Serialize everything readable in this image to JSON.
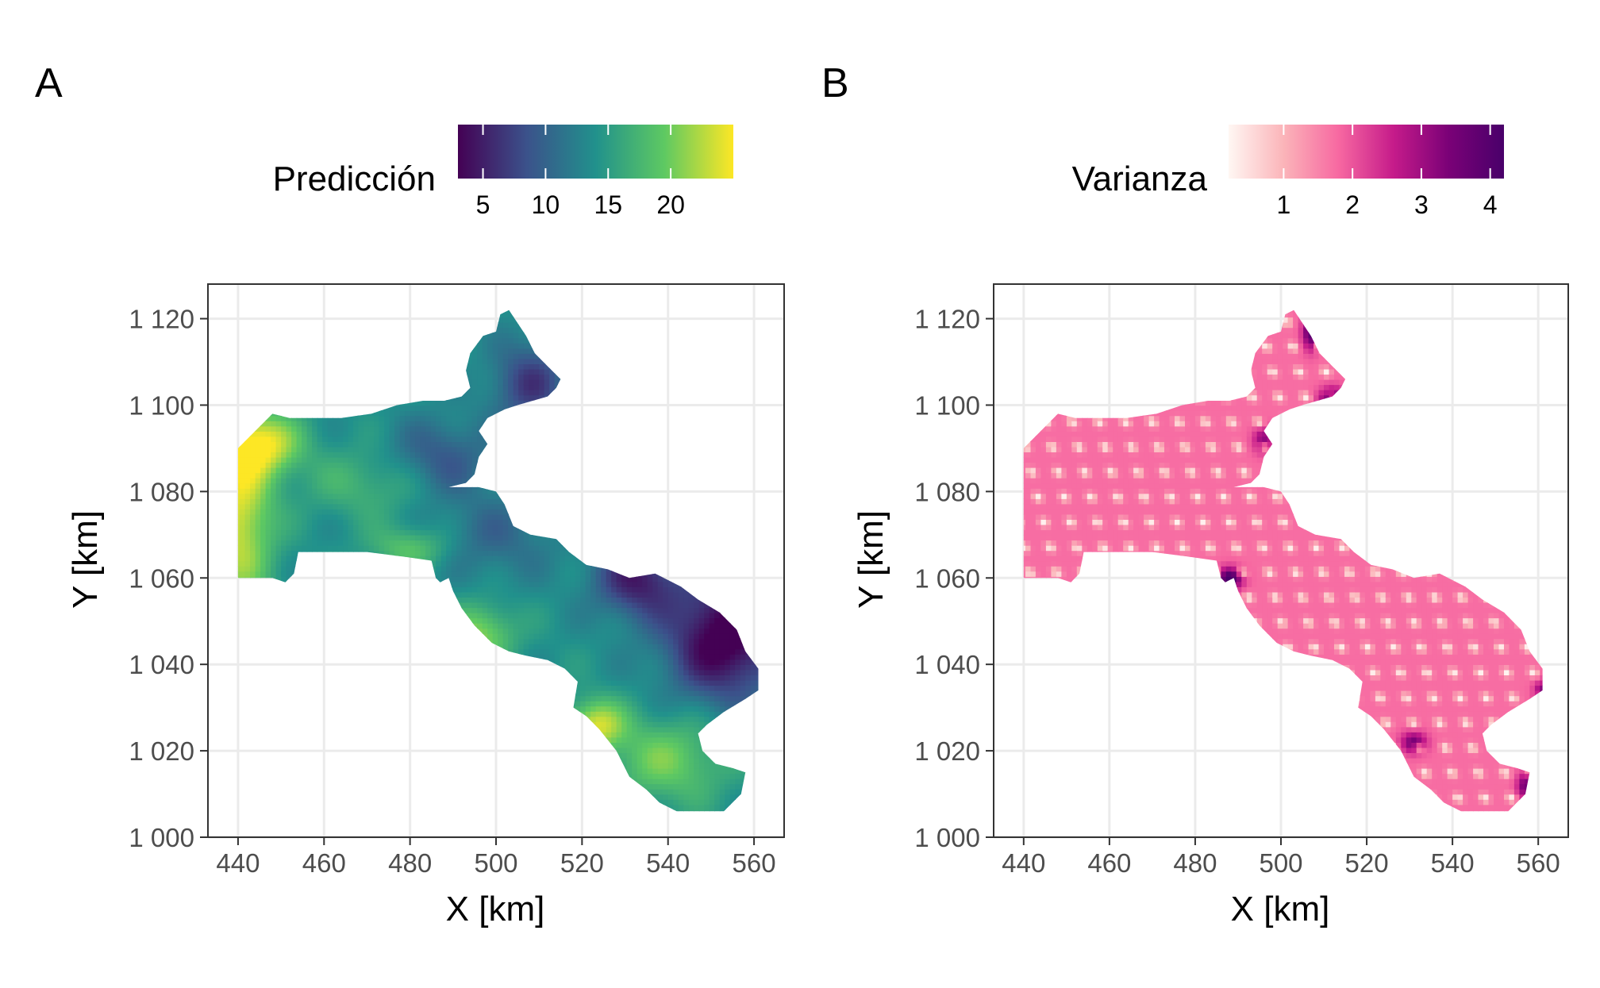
{
  "chart_data": [
    {
      "type": "heatmap",
      "panel_tag": "A",
      "fill_label": "Predicción",
      "colormap": "viridis",
      "colors": [
        "#440154",
        "#3b528b",
        "#21918c",
        "#5ec962",
        "#fde725"
      ],
      "fill_range": [
        3,
        25
      ],
      "legend_ticks": [
        "5",
        "10",
        "15",
        "20"
      ],
      "legend_tick_values": [
        5,
        10,
        15,
        20
      ],
      "xlabel": "X [km]",
      "ylabel": "Y [km]",
      "xlim": [
        433,
        567
      ],
      "ylim": [
        1000,
        1128
      ],
      "x_ticks": [
        "440",
        "460",
        "480",
        "500",
        "520",
        "540",
        "560"
      ],
      "x_tick_values": [
        440,
        460,
        480,
        500,
        520,
        540,
        560
      ],
      "y_ticks": [
        "1 000",
        "1 020",
        "1 040",
        "1 060",
        "1 080",
        "1 100",
        "1 120"
      ],
      "y_tick_values": [
        1000,
        1020,
        1040,
        1060,
        1080,
        1100,
        1120
      ],
      "grid": true
    },
    {
      "type": "heatmap",
      "panel_tag": "B",
      "fill_label": "Varianza",
      "colormap": "RdPu",
      "colors": [
        "#fff7f3",
        "#fbb4b9",
        "#f768a1",
        "#c51b8a",
        "#7a0177",
        "#49006a"
      ],
      "fill_range": [
        0.2,
        4.2
      ],
      "legend_ticks": [
        "1",
        "2",
        "3",
        "4"
      ],
      "legend_tick_values": [
        1,
        2,
        3,
        4
      ],
      "xlabel": "X [km]",
      "ylabel": "Y [km]",
      "xlim": [
        433,
        567
      ],
      "ylim": [
        1000,
        1128
      ],
      "x_ticks": [
        "440",
        "460",
        "480",
        "500",
        "520",
        "540",
        "560"
      ],
      "x_tick_values": [
        440,
        460,
        480,
        500,
        520,
        540,
        560
      ],
      "y_ticks": [
        "1 000",
        "1 020",
        "1 040",
        "1 060",
        "1 080",
        "1 100",
        "1 120"
      ],
      "y_tick_values": [
        1000,
        1020,
        1040,
        1060,
        1080,
        1100,
        1120
      ],
      "grid": true
    }
  ],
  "region_outline_km": [
    [
      440,
      1060
    ],
    [
      444,
      1060
    ],
    [
      448,
      1060
    ],
    [
      451,
      1059
    ],
    [
      453,
      1061
    ],
    [
      454,
      1066
    ],
    [
      462,
      1066
    ],
    [
      470,
      1066
    ],
    [
      478,
      1065
    ],
    [
      485,
      1064
    ],
    [
      486,
      1060
    ],
    [
      487,
      1059
    ],
    [
      489,
      1060
    ],
    [
      490,
      1057
    ],
    [
      492,
      1053
    ],
    [
      495,
      1049
    ],
    [
      499,
      1045
    ],
    [
      503,
      1043
    ],
    [
      507,
      1042
    ],
    [
      512,
      1041
    ],
    [
      516,
      1039
    ],
    [
      519,
      1036
    ],
    [
      518,
      1030
    ],
    [
      521,
      1028
    ],
    [
      524,
      1025
    ],
    [
      528,
      1020
    ],
    [
      531,
      1014
    ],
    [
      535,
      1011
    ],
    [
      538,
      1008
    ],
    [
      542,
      1006
    ],
    [
      547,
      1006
    ],
    [
      553,
      1006
    ],
    [
      557,
      1010
    ],
    [
      558,
      1015
    ],
    [
      555,
      1016
    ],
    [
      551,
      1017
    ],
    [
      548,
      1020
    ],
    [
      547,
      1024
    ],
    [
      549,
      1026
    ],
    [
      553,
      1029
    ],
    [
      558,
      1032
    ],
    [
      561,
      1034
    ],
    [
      561,
      1039
    ],
    [
      558,
      1043
    ],
    [
      556,
      1048
    ],
    [
      552,
      1052
    ],
    [
      547,
      1055
    ],
    [
      543,
      1058
    ],
    [
      537,
      1061
    ],
    [
      531,
      1060
    ],
    [
      526,
      1062
    ],
    [
      521,
      1063
    ],
    [
      517,
      1066
    ],
    [
      514,
      1069
    ],
    [
      508,
      1070
    ],
    [
      504,
      1072
    ],
    [
      502,
      1077
    ],
    [
      500,
      1080
    ],
    [
      496,
      1081
    ],
    [
      489,
      1081
    ],
    [
      493,
      1082
    ],
    [
      495,
      1084
    ],
    [
      496,
      1088
    ],
    [
      498,
      1091
    ],
    [
      496,
      1094
    ],
    [
      498,
      1097
    ],
    [
      502,
      1099
    ],
    [
      505,
      1100
    ],
    [
      512,
      1102
    ],
    [
      514,
      1104
    ],
    [
      515,
      1106
    ],
    [
      512,
      1109
    ],
    [
      509,
      1112
    ],
    [
      507,
      1116
    ],
    [
      505,
      1119
    ],
    [
      503,
      1122
    ],
    [
      501,
      1121
    ],
    [
      500,
      1117
    ],
    [
      497,
      1116
    ],
    [
      494,
      1112
    ],
    [
      493,
      1108
    ],
    [
      494,
      1104
    ],
    [
      492,
      1102
    ],
    [
      488,
      1101
    ],
    [
      483,
      1101
    ],
    [
      477,
      1100
    ],
    [
      471,
      1098
    ],
    [
      464,
      1097
    ],
    [
      458,
      1097
    ],
    [
      452,
      1097
    ],
    [
      448,
      1098
    ],
    [
      444,
      1094
    ],
    [
      440,
      1090
    ],
    [
      440,
      1080
    ],
    [
      440,
      1070
    ]
  ]
}
